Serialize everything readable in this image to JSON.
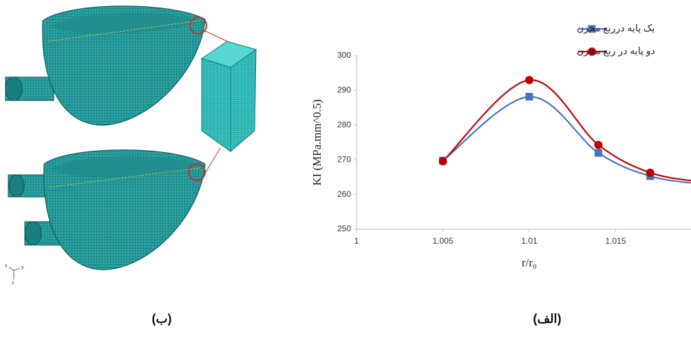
{
  "chart_data": {
    "type": "line",
    "x_label": "r/r₀",
    "y_label": "KI (MPa.mm^0.5)",
    "x": [
      1.005,
      1.01,
      1.014,
      1.017,
      1.02
    ],
    "series": [
      {
        "name": "یک پایه درربع مخزن",
        "color": "#4472c4",
        "marker": "square",
        "values": [
          269.8,
          288.2,
          272.0,
          265.3,
          263.0
        ]
      },
      {
        "name": "دو پایه در ربع مخزن",
        "color": "#c00000",
        "marker": "circle",
        "values": [
          269.6,
          293.0,
          274.3,
          266.3,
          263.6
        ]
      }
    ],
    "xlim": [
      1,
      1.02
    ],
    "xticks": [
      1,
      1.005,
      1.01,
      1.015,
      1.02
    ],
    "ylim": [
      250,
      300
    ],
    "yticks": [
      250,
      260,
      270,
      280,
      290,
      300
    ],
    "grid": false,
    "legend": "top-right"
  },
  "captions": {
    "left": "(ب)",
    "right": "(الف)"
  },
  "triad": [
    "x",
    "y",
    "z"
  ]
}
